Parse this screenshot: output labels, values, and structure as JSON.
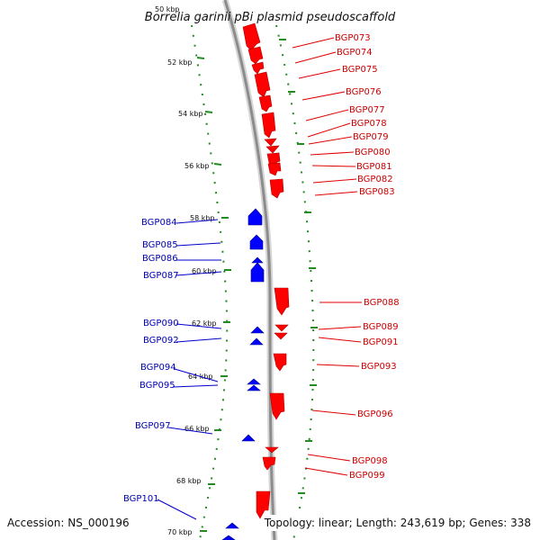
{
  "title": "Borrelia garinii pBi plasmid pseudoscaffold",
  "footer": {
    "accession": "Accession: NS_000196",
    "summary": "Topology: linear; Length: 243,619 bp; Genes: 338"
  },
  "colors": {
    "forward_strand": "#ff0000",
    "reverse_strand": "#0000ff",
    "forward_label": "#cc0000",
    "reverse_label": "#0000b4",
    "tick_marks": "#228b22",
    "backbone": "#8c8c8c"
  },
  "ticks": [
    {
      "label": "50 kbp"
    },
    {
      "label": "52 kbp"
    },
    {
      "label": "54 kbp"
    },
    {
      "label": "56 kbp"
    },
    {
      "label": "58 kbp"
    },
    {
      "label": "60 kbp"
    },
    {
      "label": "62 kbp"
    },
    {
      "label": "64 kbp"
    },
    {
      "label": "66 kbp"
    },
    {
      "label": "68 kbp"
    },
    {
      "label": "70 kbp"
    }
  ],
  "genes_forward": [
    "BGP073",
    "BGP074",
    "BGP075",
    "BGP076",
    "BGP077",
    "BGP078",
    "BGP079",
    "BGP080",
    "BGP081",
    "BGP082",
    "BGP083",
    "BGP088",
    "BGP089",
    "BGP091",
    "BGP093",
    "BGP096",
    "BGP098",
    "BGP099"
  ],
  "genes_reverse": [
    "BGP084",
    "BGP085",
    "BGP086",
    "BGP087",
    "BGP090",
    "BGP092",
    "BGP094",
    "BGP095",
    "BGP097",
    "BGP101"
  ]
}
